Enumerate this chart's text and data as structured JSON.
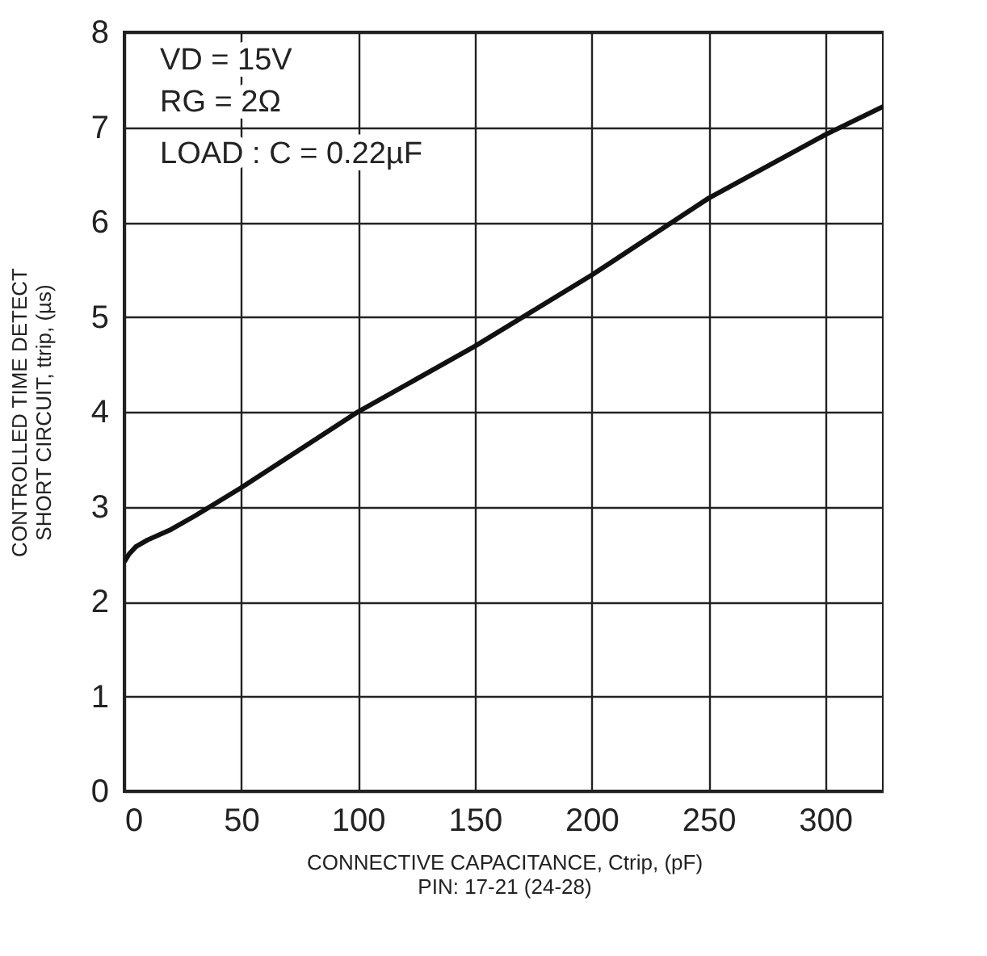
{
  "chart_data": {
    "type": "line",
    "xlabel": "CONNECTIVE CAPACITANCE, Ctrip, (pF)\nPIN: 17-21 (24-28)",
    "ylabel": "CONTROLLED TIME DETECT\nSHORT CIRCUIT, ttrip, (µs)",
    "x": [
      0,
      2,
      5,
      10,
      20,
      30,
      50,
      100,
      150,
      200,
      250,
      300,
      325
    ],
    "series": [
      {
        "color": "#111111",
        "values": [
          2.42,
          2.5,
          2.58,
          2.65,
          2.76,
          2.9,
          3.2,
          4.0,
          4.69,
          5.44,
          6.25,
          6.92,
          7.22
        ]
      }
    ],
    "xlim": [
      0,
      325
    ],
    "xticks": [
      0,
      50,
      100,
      150,
      200,
      250,
      300
    ],
    "ylim": [
      0,
      8
    ],
    "yticks": [
      0,
      1,
      2,
      3,
      4,
      5,
      6,
      7,
      8
    ],
    "grid": true,
    "marker": "none",
    "line_style": "solid",
    "annotations": [
      "VD = 15V",
      "RG = 2Ω",
      "LOAD : C = 0.22µF"
    ]
  }
}
